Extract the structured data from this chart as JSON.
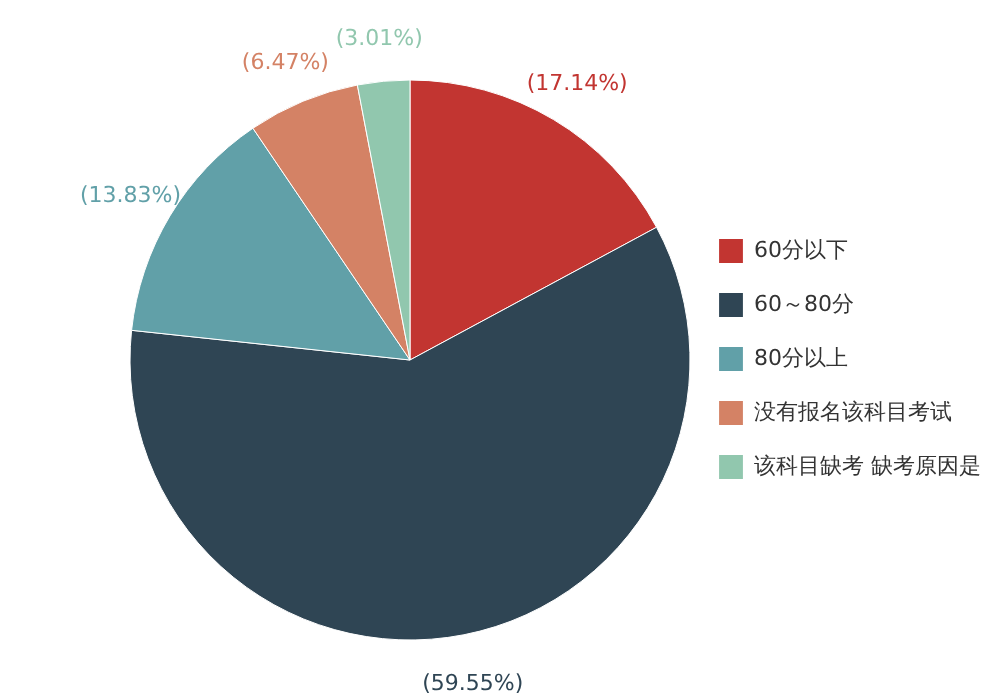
{
  "chart_data": {
    "type": "pie",
    "categories": [
      "60分以下",
      "60～80分",
      "80分以上",
      "没有报名该科目考试",
      "该科目缺考 缺考原因是"
    ],
    "values": [
      17.14,
      59.55,
      13.83,
      6.47,
      3.01
    ],
    "colors": [
      "#c23531",
      "#2f4554",
      "#61a0a8",
      "#d48265",
      "#91c7ae"
    ],
    "value_labels": [
      "(17.14%)",
      "(59.55%)",
      "(13.83%)",
      "(6.47%)",
      "(3.01%)"
    ],
    "legend": "right"
  }
}
